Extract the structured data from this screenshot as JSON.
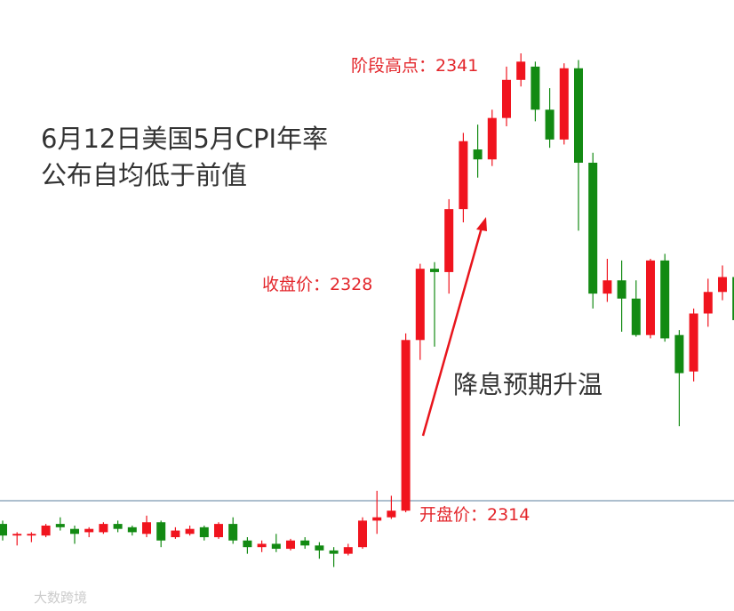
{
  "chart_data": {
    "type": "candlestick",
    "title_lines": [
      "6月12日美国5月CPI年率",
      "公布自均低于前值"
    ],
    "annotations": [
      "阶段高点：2341",
      "收盘价：2328",
      "开盘价：2314",
      "降息预期升温"
    ],
    "watermark": "大数跨境",
    "up_color": "#f0141e",
    "down_color": "#138a13",
    "ref_line": 2314,
    "ref_color": "#5b7f9c",
    "ylim": [
      2308,
      2344
    ],
    "open": [
      2312.6,
      2311.9,
      2311.9,
      2311.9,
      2312.6,
      2312.3,
      2312.1,
      2312.1,
      2312.6,
      2312.4,
      2312.0,
      2312.7,
      2311.8,
      2312.0,
      2312.4,
      2311.8,
      2312.6,
      2311.6,
      2311.2,
      2311.4,
      2311.1,
      2311.6,
      2311.3,
      2311.0,
      2310.8,
      2311.2,
      2312.8,
      2313.0,
      2313.4,
      2323.7,
      2328.0,
      2327.8,
      2331.6,
      2335.2,
      2334.6,
      2337.1,
      2339.4,
      2340.2,
      2337.6,
      2335.8,
      2340.1,
      2334.4,
      2326.5,
      2327.3,
      2326.2,
      2324.0,
      2328.5,
      2324.0,
      2321.8,
      2325.3,
      2326.6,
      2327.5
    ],
    "high": [
      2312.8,
      2312.1,
      2312.1,
      2312.6,
      2313.0,
      2312.5,
      2312.4,
      2312.7,
      2312.8,
      2312.5,
      2313.1,
      2312.8,
      2312.4,
      2312.5,
      2312.5,
      2312.7,
      2313.0,
      2311.8,
      2311.6,
      2312.0,
      2311.7,
      2311.8,
      2311.5,
      2311.2,
      2311.4,
      2313.0,
      2314.6,
      2314.3,
      2324.1,
      2328.3,
      2328.4,
      2332.2,
      2336.2,
      2336.7,
      2337.6,
      2340.2,
      2341.0,
      2340.5,
      2338.9,
      2340.4,
      2340.6,
      2335.0,
      2328.6,
      2328.5,
      2327.3,
      2328.6,
      2328.9,
      2324.3,
      2325.6,
      2327.4,
      2328.2,
      2328.3
    ],
    "low": [
      2311.6,
      2311.3,
      2311.5,
      2311.8,
      2312.2,
      2311.4,
      2311.8,
      2312.0,
      2312.1,
      2311.9,
      2311.8,
      2311.2,
      2311.7,
      2311.9,
      2311.6,
      2311.7,
      2311.4,
      2310.8,
      2310.9,
      2310.9,
      2311.0,
      2311.1,
      2310.5,
      2310.0,
      2310.7,
      2311.1,
      2312.0,
      2312.9,
      2313.3,
      2322.5,
      2323.3,
      2326.5,
      2330.8,
      2333.5,
      2334.2,
      2336.6,
      2339.0,
      2336.9,
      2335.3,
      2335.5,
      2330.3,
      2325.6,
      2326.0,
      2324.2,
      2323.9,
      2323.8,
      2323.6,
      2318.5,
      2321.2,
      2324.5,
      2326.1,
      2324.8
    ],
    "close": [
      2311.9,
      2312.0,
      2312.0,
      2312.5,
      2312.4,
      2312.0,
      2312.3,
      2312.6,
      2312.3,
      2312.1,
      2312.7,
      2311.6,
      2312.2,
      2312.3,
      2311.8,
      2312.6,
      2311.6,
      2311.2,
      2311.4,
      2311.1,
      2311.6,
      2311.3,
      2311.0,
      2310.8,
      2311.2,
      2312.8,
      2313.0,
      2313.4,
      2323.7,
      2328.0,
      2327.8,
      2331.6,
      2335.7,
      2334.6,
      2337.1,
      2339.4,
      2340.5,
      2337.6,
      2335.8,
      2340.1,
      2334.4,
      2326.5,
      2327.3,
      2326.2,
      2324.0,
      2328.5,
      2323.8,
      2321.7,
      2325.3,
      2326.6,
      2327.5,
      2324.9
    ]
  }
}
